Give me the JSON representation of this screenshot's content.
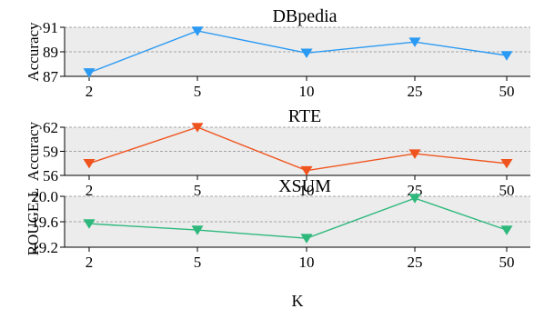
{
  "chart_data": [
    {
      "type": "line",
      "title": "DBpedia",
      "xlabel": "",
      "ylabel": "Accuracy",
      "categories": [
        "2",
        "5",
        "10",
        "25",
        "50"
      ],
      "ylim": [
        87,
        91
      ],
      "yticks": [
        "87",
        "89",
        "91"
      ],
      "color": "#2b9af3",
      "marker": "triangle-down",
      "grid": true,
      "values": [
        87.3,
        90.7,
        88.9,
        89.8,
        88.7
      ]
    },
    {
      "type": "line",
      "title": "RTE",
      "xlabel": "",
      "ylabel": "Accuracy",
      "categories": [
        "2",
        "5",
        "10",
        "25",
        "50"
      ],
      "ylim": [
        56,
        62
      ],
      "yticks": [
        "56",
        "59",
        "62"
      ],
      "color": "#f0541e",
      "marker": "triangle-down",
      "grid": true,
      "values": [
        57.5,
        62.0,
        56.6,
        58.7,
        57.5
      ]
    },
    {
      "type": "line",
      "title": "XSUM",
      "xlabel": "K",
      "ylabel": "ROUGE-L",
      "categories": [
        "2",
        "5",
        "10",
        "25",
        "50"
      ],
      "ylim": [
        19.2,
        20.0
      ],
      "yticks": [
        "19.2",
        "19.6",
        "20.0"
      ],
      "color": "#2db87c",
      "marker": "triangle-down",
      "grid": true,
      "values": [
        19.57,
        19.47,
        19.34,
        19.97,
        19.47
      ]
    }
  ]
}
